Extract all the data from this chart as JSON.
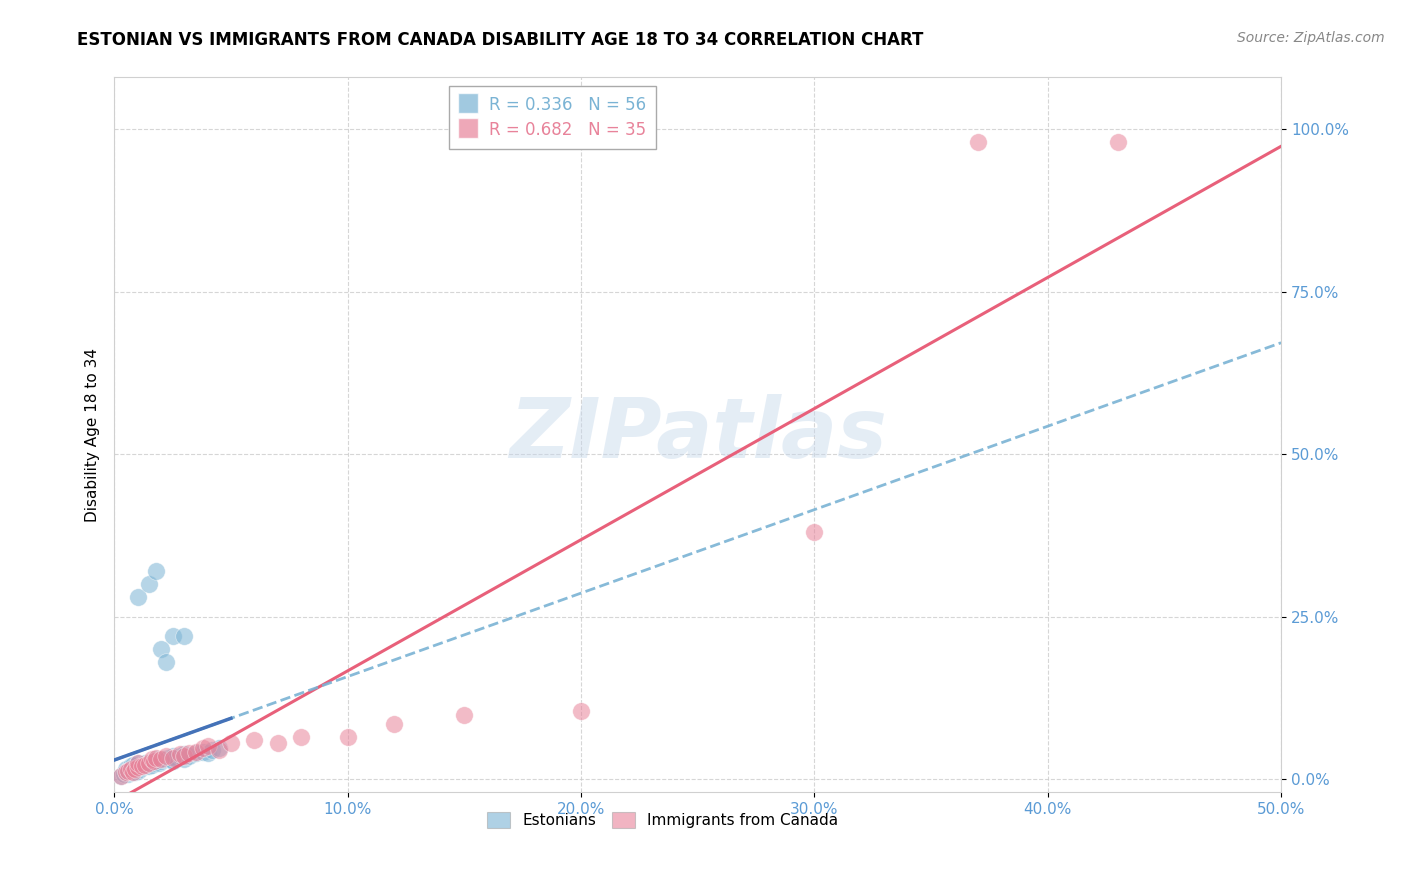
{
  "title": "ESTONIAN VS IMMIGRANTS FROM CANADA DISABILITY AGE 18 TO 34 CORRELATION CHART",
  "source": "Source: ZipAtlas.com",
  "ylabel": "Disability Age 18 to 34",
  "xlim": [
    0.0,
    0.5
  ],
  "ylim": [
    -0.02,
    1.08
  ],
  "xticks": [
    0.0,
    0.1,
    0.2,
    0.3,
    0.4,
    0.5
  ],
  "yticks": [
    0.0,
    0.25,
    0.5,
    0.75,
    1.0
  ],
  "xticklabels": [
    "0.0%",
    "10.0%",
    "20.0%",
    "30.0%",
    "40.0%",
    "50.0%"
  ],
  "yticklabels": [
    "0.0%",
    "25.0%",
    "50.0%",
    "75.0%",
    "100.0%"
  ],
  "legend_r_blue": "R = 0.336",
  "legend_n_blue": "N = 56",
  "legend_r_pink": "R = 0.682",
  "legend_n_pink": "N = 35",
  "legend_label_blue": "Estonians",
  "legend_label_pink": "Immigrants from Canada",
  "blue_color": "#7ab3d4",
  "pink_color": "#e8839a",
  "blue_line_color": "#4472b8",
  "pink_line_color": "#e8607a",
  "watermark_text": "ZIPatlas",
  "blue_scatter": [
    [
      0.003,
      0.005
    ],
    [
      0.004,
      0.008
    ],
    [
      0.005,
      0.01
    ],
    [
      0.005,
      0.015
    ],
    [
      0.006,
      0.008
    ],
    [
      0.006,
      0.012
    ],
    [
      0.007,
      0.01
    ],
    [
      0.007,
      0.015
    ],
    [
      0.007,
      0.02
    ],
    [
      0.008,
      0.012
    ],
    [
      0.008,
      0.018
    ],
    [
      0.008,
      0.022
    ],
    [
      0.009,
      0.01
    ],
    [
      0.009,
      0.015
    ],
    [
      0.009,
      0.02
    ],
    [
      0.01,
      0.012
    ],
    [
      0.01,
      0.018
    ],
    [
      0.01,
      0.025
    ],
    [
      0.011,
      0.015
    ],
    [
      0.011,
      0.02
    ],
    [
      0.012,
      0.018
    ],
    [
      0.012,
      0.022
    ],
    [
      0.013,
      0.02
    ],
    [
      0.013,
      0.025
    ],
    [
      0.014,
      0.022
    ],
    [
      0.015,
      0.02
    ],
    [
      0.015,
      0.025
    ],
    [
      0.016,
      0.022
    ],
    [
      0.017,
      0.025
    ],
    [
      0.018,
      0.028
    ],
    [
      0.018,
      0.03
    ],
    [
      0.019,
      0.025
    ],
    [
      0.02,
      0.028
    ],
    [
      0.021,
      0.03
    ],
    [
      0.022,
      0.03
    ],
    [
      0.023,
      0.032
    ],
    [
      0.024,
      0.03
    ],
    [
      0.025,
      0.028
    ],
    [
      0.025,
      0.035
    ],
    [
      0.026,
      0.032
    ],
    [
      0.028,
      0.035
    ],
    [
      0.03,
      0.03
    ],
    [
      0.03,
      0.038
    ],
    [
      0.032,
      0.035
    ],
    [
      0.035,
      0.04
    ],
    [
      0.038,
      0.042
    ],
    [
      0.04,
      0.04
    ],
    [
      0.042,
      0.045
    ],
    [
      0.045,
      0.048
    ],
    [
      0.01,
      0.28
    ],
    [
      0.015,
      0.3
    ],
    [
      0.018,
      0.32
    ],
    [
      0.025,
      0.22
    ],
    [
      0.03,
      0.22
    ],
    [
      0.02,
      0.2
    ],
    [
      0.022,
      0.18
    ]
  ],
  "pink_scatter": [
    [
      0.003,
      0.005
    ],
    [
      0.005,
      0.01
    ],
    [
      0.006,
      0.012
    ],
    [
      0.007,
      0.015
    ],
    [
      0.008,
      0.01
    ],
    [
      0.009,
      0.015
    ],
    [
      0.01,
      0.018
    ],
    [
      0.01,
      0.025
    ],
    [
      0.012,
      0.02
    ],
    [
      0.013,
      0.022
    ],
    [
      0.015,
      0.025
    ],
    [
      0.016,
      0.03
    ],
    [
      0.017,
      0.028
    ],
    [
      0.018,
      0.032
    ],
    [
      0.02,
      0.03
    ],
    [
      0.022,
      0.035
    ],
    [
      0.025,
      0.032
    ],
    [
      0.028,
      0.038
    ],
    [
      0.03,
      0.035
    ],
    [
      0.032,
      0.04
    ],
    [
      0.035,
      0.042
    ],
    [
      0.038,
      0.048
    ],
    [
      0.04,
      0.05
    ],
    [
      0.045,
      0.045
    ],
    [
      0.05,
      0.055
    ],
    [
      0.06,
      0.06
    ],
    [
      0.07,
      0.055
    ],
    [
      0.08,
      0.065
    ],
    [
      0.1,
      0.065
    ],
    [
      0.12,
      0.085
    ],
    [
      0.15,
      0.098
    ],
    [
      0.2,
      0.105
    ],
    [
      0.3,
      0.38
    ],
    [
      0.37,
      0.98
    ],
    [
      0.43,
      0.98
    ]
  ],
  "title_fontsize": 12,
  "axis_label_fontsize": 11,
  "tick_fontsize": 11,
  "source_fontsize": 10,
  "background_color": "#ffffff",
  "grid_color": "#cccccc"
}
